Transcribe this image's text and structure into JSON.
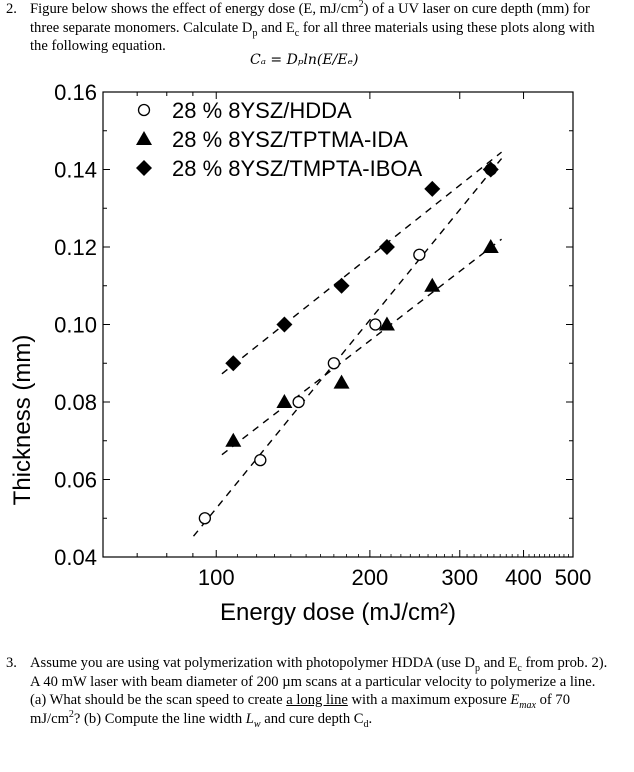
{
  "problem2": {
    "number": "2.",
    "text_a": "Figure below shows the effect of energy dose (E, mJ/cm",
    "sup_a": "2",
    "text_b": ") of a UV laser on cure depth (mm) for three separate monomers. Calculate D",
    "sub_p": "p",
    "text_c": " and E",
    "sub_c": "c",
    "text_d": " for all three materials using these plots along with the following equation.",
    "equation": "Cₐ = Dₚln(E/Eₑ)"
  },
  "chart_data": {
    "type": "scatter",
    "title": "",
    "xlabel": "Energy dose (mJ/cm²)",
    "ylabel": "Thickness (mm)",
    "xscale": "log",
    "xlim": [
      60,
      500
    ],
    "ylim": [
      0.04,
      0.16
    ],
    "x_tick_labels": [
      "100",
      "200",
      "300",
      "400",
      "500"
    ],
    "y_tick_labels": [
      "0.04",
      "0.06",
      "0.08",
      "0.10",
      "0.12",
      "0.14",
      "0.16"
    ],
    "legend_position": "top-left",
    "grid": false,
    "series": [
      {
        "name": "28 % 8YSZ/HDDA",
        "marker": "open-circle",
        "x": [
          95,
          122,
          145,
          170,
          205,
          250,
          345
        ],
        "y": [
          0.05,
          0.065,
          0.08,
          0.09,
          0.1,
          0.118,
          0.14
        ]
      },
      {
        "name": "28 % 8YSZ/TPTMA-IDA",
        "marker": "filled-triangle",
        "x": [
          108,
          136,
          176,
          216,
          265,
          345
        ],
        "y": [
          0.07,
          0.08,
          0.085,
          0.1,
          0.11,
          0.12
        ]
      },
      {
        "name": "28 % 8YSZ/TMPTA-IBOA",
        "marker": "filled-diamond",
        "x": [
          108,
          136,
          176,
          216,
          265,
          345
        ],
        "y": [
          0.09,
          0.1,
          0.11,
          0.12,
          0.135,
          0.14
        ]
      }
    ]
  },
  "problem3": {
    "number": "3.",
    "text_a": "Assume you are using vat polymerization with photopolymer HDDA (use D",
    "sub_p": "p",
    "text_b": " and E",
    "sub_c": "c",
    "text_c": " from prob. 2).  A 40 mW laser with beam diameter of 200 µm scans at a particular velocity to polymerize a line. (a) What should be the scan speed to create ",
    "underline": "a long line",
    "text_d": " with a maximum exposure ",
    "emax": "E",
    "emax_sub": "max",
    "text_e": " of 70 mJ/cm",
    "sup": "2",
    "text_f": "? (b) Compute the line width ",
    "lw": "L",
    "lw_sub": "w",
    "text_g": " and cure depth C",
    "cd_sub": "d",
    "text_h": "."
  }
}
